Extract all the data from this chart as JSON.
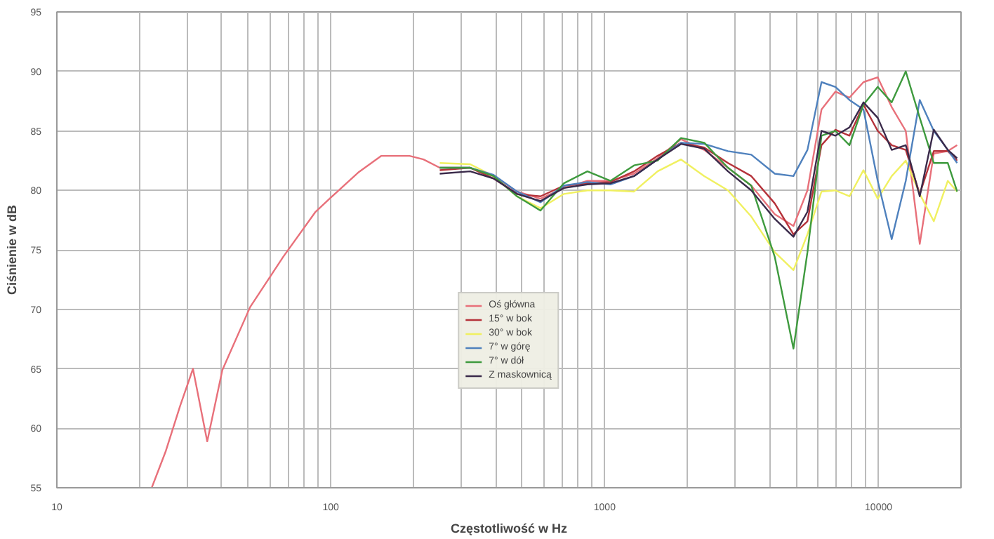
{
  "chart_data": {
    "type": "line",
    "xlabel": "Częstotliwość w Hz",
    "ylabel": "Ciśnienie w dB",
    "log": "x",
    "grid": true,
    "legend": "bottom",
    "marker": "none",
    "line_style": "solid",
    "xlim": [
      10,
      20000
    ],
    "ylim": [
      55,
      95
    ],
    "yticks": [
      55,
      60,
      65,
      70,
      75,
      80,
      85,
      90,
      95
    ],
    "xticks": [
      10,
      {
        "value": 20,
        "label": null
      },
      {
        "value": 30,
        "label": null
      },
      {
        "value": 40,
        "label": null
      },
      {
        "value": 50,
        "label": null
      },
      {
        "value": 60,
        "label": null
      },
      {
        "value": 70,
        "label": null
      },
      {
        "value": 80,
        "label": null
      },
      {
        "value": 90,
        "label": null
      },
      100,
      {
        "value": 200,
        "label": null
      },
      {
        "value": 300,
        "label": null
      },
      {
        "value": 400,
        "label": null
      },
      {
        "value": 500,
        "label": null
      },
      {
        "value": 600,
        "label": null
      },
      {
        "value": 700,
        "label": null
      },
      {
        "value": 800,
        "label": null
      },
      {
        "value": 900,
        "label": null
      },
      1000,
      {
        "value": 2000,
        "label": null
      },
      {
        "value": 3000,
        "label": null
      },
      {
        "value": 4000,
        "label": null
      },
      {
        "value": 5000,
        "label": null
      },
      {
        "value": 6000,
        "label": null
      },
      {
        "value": 7000,
        "label": null
      },
      {
        "value": 8000,
        "label": null
      },
      {
        "value": 9000,
        "label": null
      },
      10000
    ],
    "x": [
      250,
      323,
      393,
      479,
      583,
      710,
      865,
      1050,
      1280,
      1560,
      1900,
      2310,
      2820,
      3430,
      4180,
      4890,
      5500,
      6190,
      6960,
      7830,
      8810,
      9930,
      11170,
      12570,
      14140,
      15910,
      17900,
      19360
    ],
    "series": [
      {
        "name": "Oś główna",
        "color": "#e8707a",
        "x": [
          22.2,
          25,
          28.2,
          31.4,
          35.4,
          40.2,
          50.8,
          67,
          88,
          99,
          126,
          153,
          194,
          218,
          250,
          323,
          393,
          479,
          583,
          710,
          865,
          1050,
          1280,
          1560,
          1900,
          2310,
          2820,
          3430,
          4180,
          4890,
          5500,
          6190,
          6960,
          7830,
          8810,
          9930,
          11170,
          12570,
          14140,
          15910,
          17900,
          19360
        ],
        "values": [
          55,
          58.1,
          61.9,
          65,
          58.9,
          64.9,
          70.2,
          74.4,
          78.2,
          79.3,
          81.5,
          82.9,
          82.9,
          82.6,
          81.9,
          81.9,
          81.2,
          79.9,
          79.3,
          80.2,
          80.8,
          80.8,
          81.4,
          82.7,
          84.3,
          83.4,
          81.9,
          80.4,
          78.0,
          77.0,
          80.0,
          86.8,
          88.3,
          87.8,
          89.1,
          89.5,
          87.0,
          85.0,
          75.5,
          83.1,
          83.3,
          83.8
        ]
      },
      {
        "name": "15° w bok",
        "color": "#b5323a",
        "values": [
          81.7,
          81.9,
          81.0,
          79.7,
          79.5,
          80.4,
          80.6,
          80.7,
          81.6,
          82.9,
          84.0,
          83.6,
          82.3,
          81.2,
          78.9,
          76.3,
          77.4,
          83.8,
          85.1,
          84.6,
          87.2,
          85.0,
          83.8,
          83.4,
          79.7,
          83.3,
          83.3,
          82.5
        ]
      },
      {
        "name": "30° w bok",
        "color": "#f0f060",
        "values": [
          82.3,
          82.2,
          81.2,
          79.5,
          78.5,
          79.7,
          80.0,
          80.0,
          79.9,
          81.6,
          82.6,
          81.2,
          80.0,
          77.8,
          74.8,
          73.3,
          76.3,
          79.9,
          80.0,
          79.5,
          81.7,
          79.3,
          81.2,
          82.5,
          79.7,
          77.4,
          80.8,
          79.9
        ]
      },
      {
        "name": "7° w górę",
        "color": "#4f81bd",
        "values": [
          81.9,
          81.9,
          81.3,
          79.9,
          79.0,
          80.4,
          80.7,
          80.5,
          81.2,
          82.6,
          84.0,
          83.9,
          83.3,
          83.0,
          81.4,
          81.2,
          83.4,
          89.1,
          88.7,
          87.6,
          86.8,
          80.8,
          75.9,
          80.8,
          87.6,
          85.0,
          83.4,
          82.3
        ]
      },
      {
        "name": "7° w dół",
        "color": "#3e9a3e",
        "values": [
          81.9,
          81.9,
          81.2,
          79.5,
          78.3,
          80.6,
          81.6,
          80.8,
          82.1,
          82.5,
          84.4,
          84.0,
          81.9,
          80.4,
          74.4,
          66.7,
          74.8,
          84.6,
          85.0,
          83.8,
          87.2,
          88.7,
          87.4,
          90.0,
          86.1,
          82.3,
          82.3,
          79.9
        ]
      },
      {
        "name": "Z maskownicą",
        "color": "#3a2a4a",
        "values": [
          81.4,
          81.6,
          81.0,
          79.7,
          79.1,
          80.2,
          80.5,
          80.6,
          81.2,
          82.6,
          83.9,
          83.5,
          81.6,
          80.0,
          77.6,
          76.1,
          78.2,
          85.0,
          84.6,
          85.3,
          87.4,
          86.1,
          83.4,
          83.8,
          79.5,
          85.1,
          83.4,
          82.7
        ]
      }
    ]
  }
}
